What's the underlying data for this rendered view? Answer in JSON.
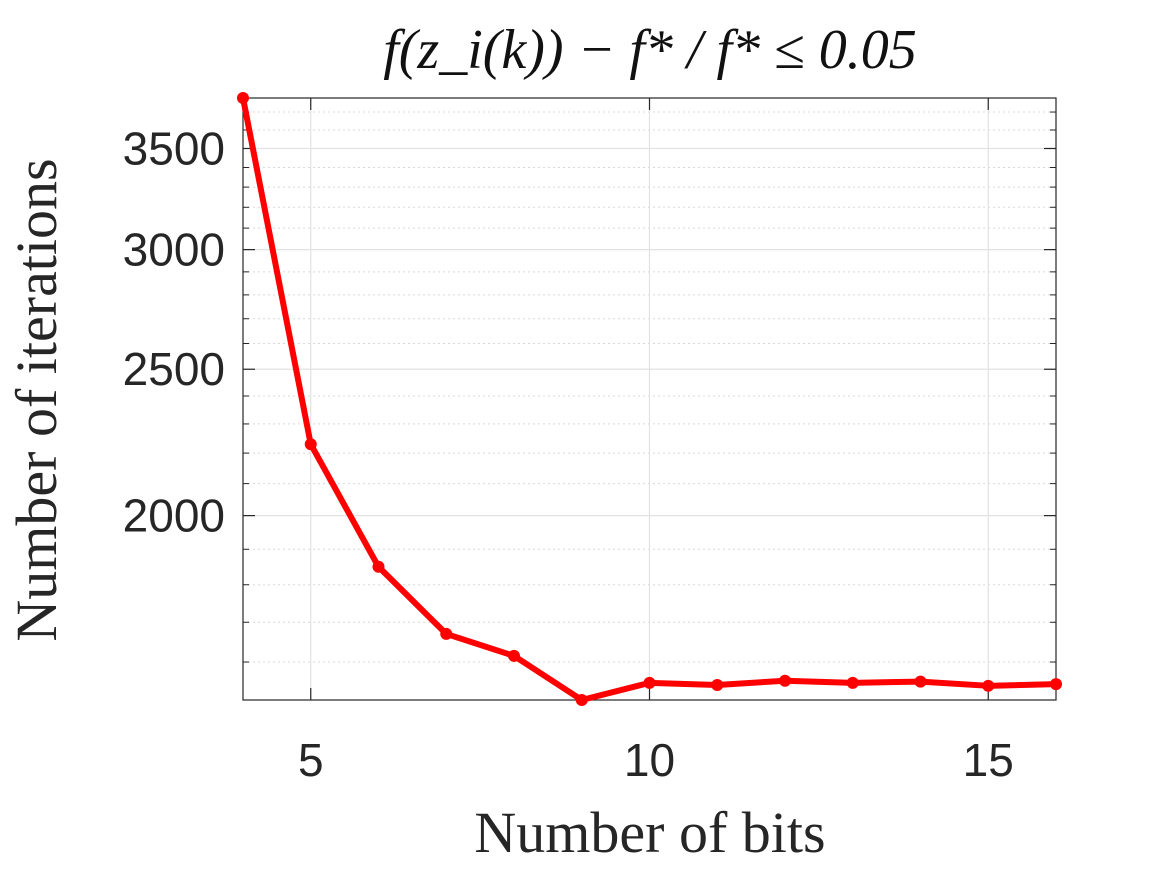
{
  "chart_data": {
    "type": "line",
    "title": "f(z_i(k)) − f* / f* ≤ 0.05",
    "xlabel": "Number of bits",
    "ylabel": "Number of iterations",
    "x": [
      4,
      5,
      6,
      7,
      8,
      9,
      10,
      11,
      12,
      13,
      14,
      15,
      16
    ],
    "series": [
      {
        "values": [
          3780,
          2230,
          1850,
          1670,
          1615,
          1510,
          1550,
          1545,
          1555,
          1550,
          1553,
          1543,
          1547
        ]
      }
    ],
    "xlim": [
      4,
      16
    ],
    "ylim": [
      1510,
      3780
    ],
    "y_scale": "log",
    "xticks": [
      5,
      10,
      15
    ],
    "yticks": [
      2000,
      2500,
      3000,
      3500
    ],
    "xtick_labels": [
      "5",
      "10",
      "15"
    ],
    "ytick_labels": [
      "2000",
      "2500",
      "3000",
      "3500"
    ],
    "grid": true,
    "minor_grid": true,
    "line_color": "#ff0000",
    "marker": "circle"
  }
}
